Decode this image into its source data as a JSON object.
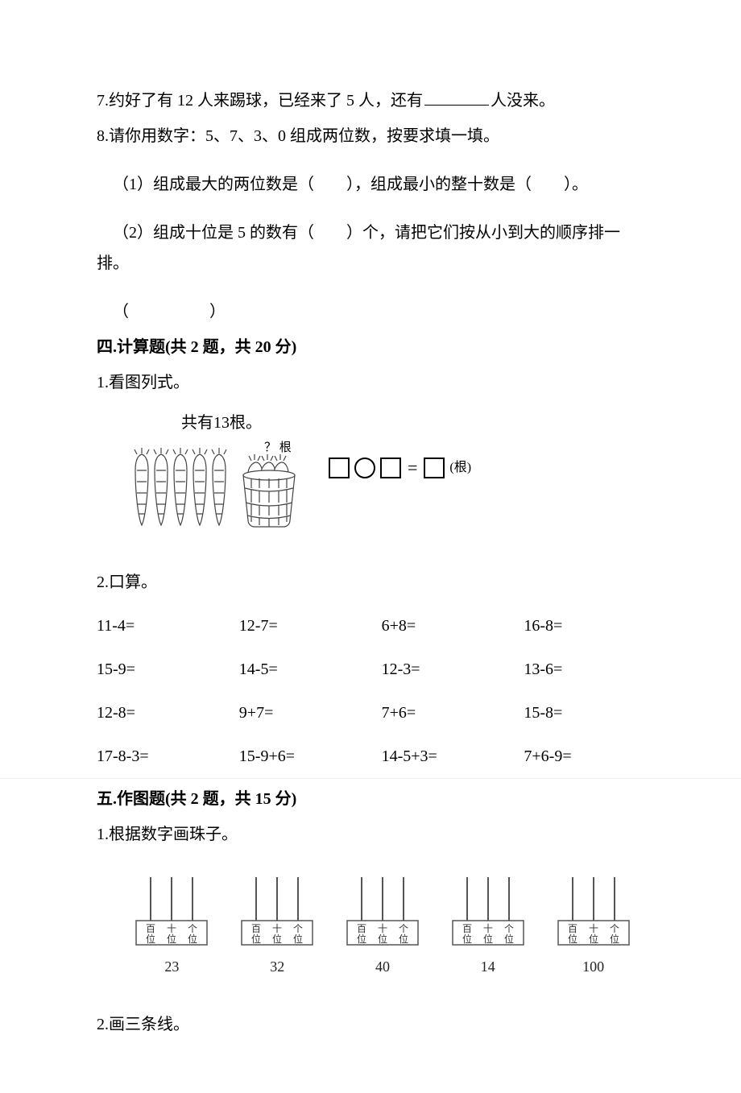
{
  "q7": {
    "prefix": "7.约好了有 12 人来踢球，已经来了 5 人，还有",
    "suffix": "人没来。"
  },
  "q8": {
    "line": "8.请你用数字：5、7、3、0 组成两位数，按要求填一填。",
    "sub1": "（1）组成最大的两位数是（　　），组成最小的整十数是（　　）。",
    "sub2": "（2）组成十位是 5 的数有（　　）个，请把它们按从小到大的顺序排一排。",
    "sub3": "（　　　　　）"
  },
  "sec4": {
    "title": "四.计算题(共 2 题，共 20 分)",
    "q1": {
      "label": "1.看图列式。",
      "caption": "共有13根。",
      "qmark": "？ 根",
      "gen": "(根)"
    },
    "q2": {
      "label": "2.口算。",
      "rows": [
        [
          "11-4=",
          "12-7=",
          "6+8=",
          "16-8="
        ],
        [
          "15-9=",
          "14-5=",
          "12-3=",
          "13-6="
        ],
        [
          "12-8=",
          "9+7=",
          "7+6=",
          "15-8="
        ],
        [
          "17-8-3=",
          "15-9+6=",
          "14-5+3=",
          "7+6-9="
        ]
      ]
    }
  },
  "sec5": {
    "title": "五.作图题(共 2 题，共 15 分)",
    "q1": {
      "label": "1.根据数字画珠子。",
      "places": [
        "百位",
        "十位",
        "个位"
      ],
      "numbers": [
        "23",
        "32",
        "40",
        "14",
        "100"
      ]
    },
    "q2": {
      "label": "2.画三条线。"
    }
  },
  "style": {
    "text_color": "#000000",
    "bg_color": "#ffffff",
    "divider_color": "#f2f2f2",
    "font_size_body": 20,
    "font_size_small": 16,
    "eq_box_border": "#000000"
  }
}
